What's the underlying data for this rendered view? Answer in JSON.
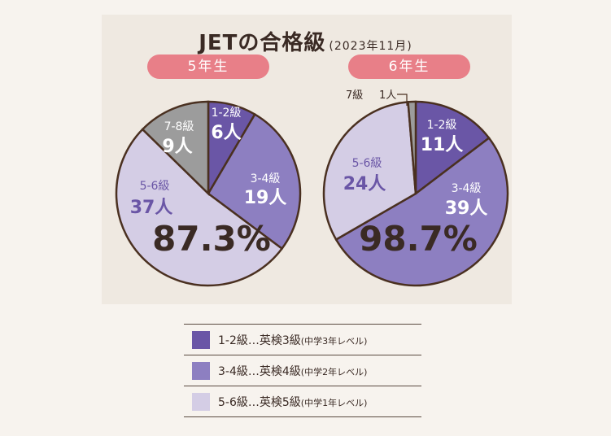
{
  "title": {
    "main": "JETの合格級",
    "sub": "(2023年11月)"
  },
  "colors": {
    "g12": "#6a56a6",
    "g34": "#8d7fc1",
    "g56": "#d4cde5",
    "g78": "#9c9c9c",
    "outline": "#4a3020",
    "pill": "#e87f88"
  },
  "chart_data": [
    {
      "type": "pie",
      "title": "5年生",
      "total_label": "87.3%",
      "slices": [
        {
          "label": "1-2級",
          "value": 6,
          "count_text": "6人",
          "color": "#6a56a6"
        },
        {
          "label": "3-4級",
          "value": 19,
          "count_text": "19人",
          "color": "#8d7fc1"
        },
        {
          "label": "5-6級",
          "value": 37,
          "count_text": "37人",
          "color": "#d4cde5"
        },
        {
          "label": "7-8級",
          "value": 9,
          "count_text": "9人",
          "color": "#9c9c9c"
        }
      ]
    },
    {
      "type": "pie",
      "title": "6年生",
      "total_label": "98.7%",
      "slices": [
        {
          "label": "1-2級",
          "value": 11,
          "count_text": "11人",
          "color": "#6a56a6"
        },
        {
          "label": "3-4級",
          "value": 39,
          "count_text": "39人",
          "color": "#8d7fc1"
        },
        {
          "label": "5-6級",
          "value": 24,
          "count_text": "24人",
          "color": "#d4cde5"
        },
        {
          "label": "7級",
          "value": 1,
          "count_text": "1人",
          "color": "#9c9c9c"
        }
      ]
    }
  ],
  "legend": [
    {
      "main": "1-2級…英検3級",
      "note": "(中学3年レベル)",
      "color": "#6a56a6"
    },
    {
      "main": "3-4級…英検4級",
      "note": "(中学2年レベル)",
      "color": "#8d7fc1"
    },
    {
      "main": "5-6級…英検5級",
      "note": "(中学1年レベル)",
      "color": "#d4cde5"
    }
  ]
}
